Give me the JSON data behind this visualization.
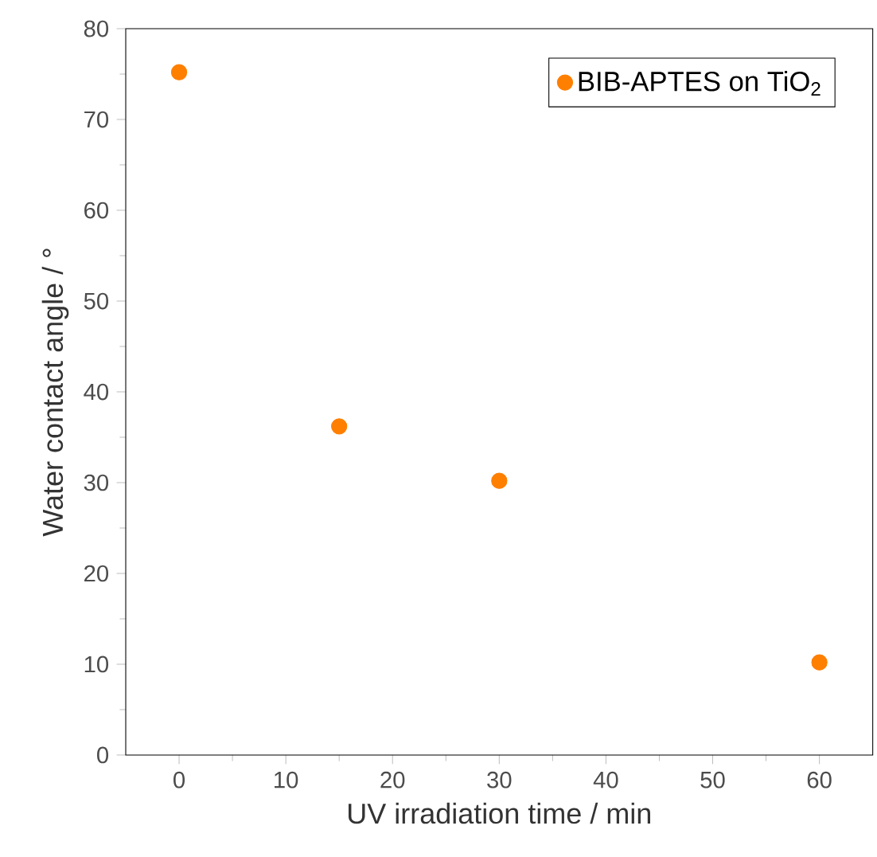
{
  "chart_data": {
    "type": "scatter",
    "xlabel": "UV irradiation time / min",
    "ylabel": "Water contact angle / °",
    "x": [
      0,
      15,
      30,
      60
    ],
    "series": [
      {
        "name": "BIB-APTES on TiO$_{2}$",
        "color": "#ff7f00",
        "values": [
          75.2,
          36.2,
          30.2,
          10.2
        ]
      }
    ],
    "xlim": [
      -5,
      65
    ],
    "ylim": [
      0,
      80
    ],
    "xticks": [
      0,
      10,
      20,
      30,
      40,
      50,
      60
    ],
    "yticks": [
      0,
      10,
      20,
      30,
      40,
      50,
      60,
      70,
      80
    ],
    "marker": "circle",
    "legend": "top right",
    "grid": false
  }
}
